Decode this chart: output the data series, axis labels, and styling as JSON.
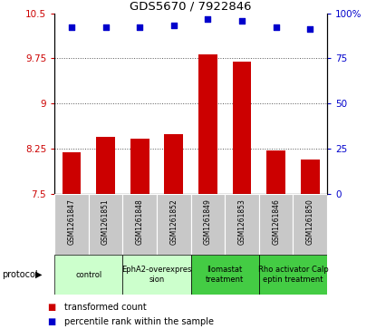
{
  "title": "GDS5670 / 7922846",
  "samples": [
    "GSM1261847",
    "GSM1261851",
    "GSM1261848",
    "GSM1261852",
    "GSM1261849",
    "GSM1261853",
    "GSM1261846",
    "GSM1261850"
  ],
  "bar_values": [
    8.2,
    8.45,
    8.42,
    8.5,
    9.82,
    9.7,
    8.22,
    8.08
  ],
  "scatter_values": [
    92,
    92,
    92,
    93,
    97,
    96,
    92,
    91
  ],
  "ylim_left": [
    7.5,
    10.5
  ],
  "ylim_right": [
    0,
    100
  ],
  "yticks_left": [
    7.5,
    8.25,
    9.0,
    9.75,
    10.5
  ],
  "yticks_right": [
    0,
    25,
    50,
    75,
    100
  ],
  "bar_color": "#cc0000",
  "scatter_color": "#0000cc",
  "protocols": [
    {
      "label": "control",
      "spans": [
        0,
        2
      ],
      "color": "#ccffcc"
    },
    {
      "label": "EphA2-overexpres\nsion",
      "spans": [
        2,
        4
      ],
      "color": "#ccffcc"
    },
    {
      "label": "Ilomastat\ntreatment",
      "spans": [
        4,
        6
      ],
      "color": "#44cc44"
    },
    {
      "label": "Rho activator Calp\neptin treatment",
      "spans": [
        6,
        8
      ],
      "color": "#44cc44"
    }
  ],
  "legend_bar_label": "transformed count",
  "legend_scatter_label": "percentile rank within the sample",
  "protocol_label": "protocol",
  "bg_color_sample": "#c8c8c8",
  "dotted_line_color": "#555555"
}
